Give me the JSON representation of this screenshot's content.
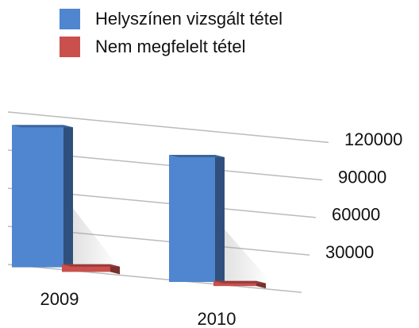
{
  "chart_data": {
    "type": "bar",
    "categories": [
      "2009",
      "2010"
    ],
    "series": [
      {
        "name": "Helyszínen vizsgált tétel",
        "color": "#4f86cf",
        "values": [
          112000,
          100000
        ]
      },
      {
        "name": "Nem megfelelt tétel",
        "color": "#c9504d",
        "values": [
          6000,
          4000
        ]
      }
    ],
    "ylim": [
      0,
      120000
    ],
    "yticks": [
      30000,
      60000,
      90000,
      120000
    ],
    "grid": true,
    "legend": "top"
  }
}
